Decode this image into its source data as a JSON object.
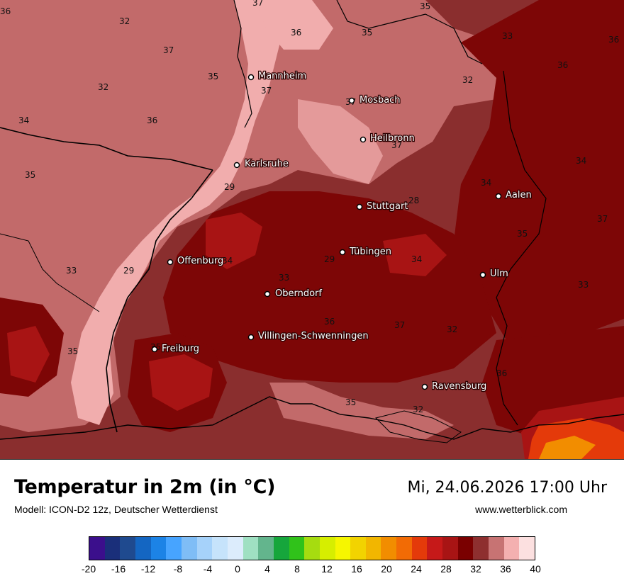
{
  "title": "Temperatur in 2m (in °C)",
  "model": "Modell: ICON-D2 12z, Deutscher Wetterdienst",
  "datetime": "Mi, 24.06.2026 17:00 Uhr",
  "website": "www.wetterblick.com",
  "cities": [
    {
      "name": "Mannheim"
    },
    {
      "name": "Mosbach"
    },
    {
      "name": "Heilbronn"
    },
    {
      "name": "Karlsruhe"
    },
    {
      "name": "Stuttgart"
    },
    {
      "name": "Aalen"
    },
    {
      "name": "Tübingen"
    },
    {
      "name": "Offenburg"
    },
    {
      "name": "Ulm"
    },
    {
      "name": "Oberndorf"
    },
    {
      "name": "Villingen-Schwenningen"
    },
    {
      "name": "Freiburg"
    },
    {
      "name": "Ravensburg"
    }
  ],
  "isotherm_labels": [
    "37",
    "35",
    "36",
    "32",
    "36",
    "35",
    "33",
    "36",
    "37",
    "36",
    "35",
    "32",
    "37",
    "32",
    "37",
    "36",
    "34",
    "37",
    "34",
    "35",
    "34",
    "29",
    "28",
    "37",
    "35",
    "29",
    "34",
    "33",
    "34",
    "29",
    "33",
    "33",
    "36",
    "37",
    "32",
    "35",
    "35",
    "36",
    "35",
    "32"
  ],
  "colorbar": {
    "colors": [
      "#3b0f8c",
      "#1a2f7a",
      "#1f4a8f",
      "#1466c2",
      "#1c83e6",
      "#47a4ff",
      "#7fbdf6",
      "#a6d2fa",
      "#c6e3fb",
      "#dcecfc",
      "#9fe0c2",
      "#63b58d",
      "#16a63c",
      "#30c21a",
      "#a6dc10",
      "#d6ee00",
      "#f6f600",
      "#f2d300",
      "#f2b600",
      "#f28d00",
      "#f26b05",
      "#e43a0a",
      "#c61919",
      "#a81414",
      "#7a0000",
      "#8e2f2f",
      "#c77373",
      "#f4b0b0",
      "#fce0e0"
    ],
    "tick_labels": [
      "-20",
      "-16",
      "-12",
      "-8",
      "-4",
      "0",
      "4",
      "8",
      "12",
      "16",
      "20",
      "24",
      "28",
      "32",
      "36",
      "40"
    ]
  }
}
